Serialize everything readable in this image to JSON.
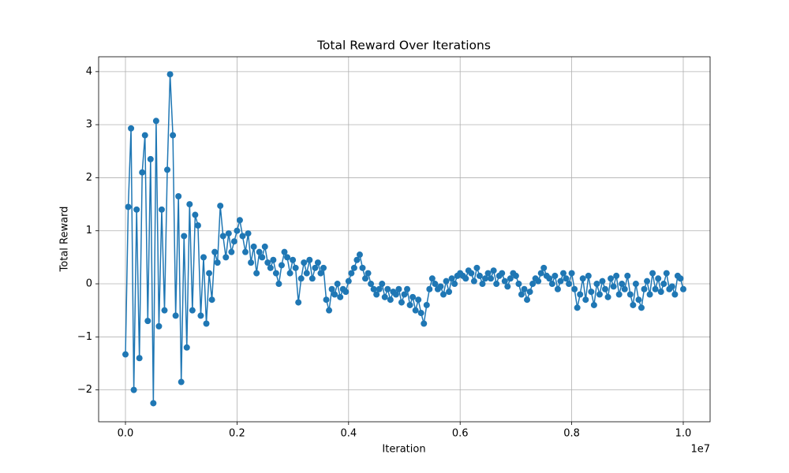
{
  "chart_data": {
    "type": "line",
    "title": "Total Reward Over Iterations",
    "x_label": "Iteration",
    "y_label": "Total Reward",
    "x_offset_label": "1e7",
    "color": "#1f77b4",
    "grid": true,
    "markers": true,
    "xlim": [
      -481000,
      10481000
    ],
    "ylim": [
      -2.6,
      4.28
    ],
    "xticks": [
      {
        "value": 0,
        "label": "0.0"
      },
      {
        "value": 2000000,
        "label": "0.2"
      },
      {
        "value": 4000000,
        "label": "0.4"
      },
      {
        "value": 6000000,
        "label": "0.6"
      },
      {
        "value": 8000000,
        "label": "0.8"
      },
      {
        "value": 10000000,
        "label": "1.0"
      }
    ],
    "yticks": [
      {
        "value": -2,
        "label": "−2"
      },
      {
        "value": -1,
        "label": "−1"
      },
      0,
      1,
      2,
      3,
      4
    ],
    "x": [
      0,
      50000,
      100000,
      150000,
      200000,
      250000,
      300000,
      350000,
      400000,
      450000,
      500000,
      550000,
      600000,
      650000,
      700000,
      750000,
      800000,
      850000,
      900000,
      950000,
      1000000,
      1050000,
      1100000,
      1150000,
      1200000,
      1250000,
      1300000,
      1350000,
      1400000,
      1450000,
      1500000,
      1550000,
      1600000,
      1650000,
      1700000,
      1750000,
      1800000,
      1850000,
      1900000,
      1950000,
      2000000,
      2050000,
      2100000,
      2150000,
      2200000,
      2250000,
      2300000,
      2350000,
      2400000,
      2450000,
      2500000,
      2550000,
      2600000,
      2650000,
      2700000,
      2750000,
      2800000,
      2850000,
      2900000,
      2950000,
      3000000,
      3050000,
      3100000,
      3150000,
      3200000,
      3250000,
      3300000,
      3350000,
      3400000,
      3450000,
      3500000,
      3550000,
      3600000,
      3650000,
      3700000,
      3750000,
      3800000,
      3850000,
      3900000,
      3950000,
      4000000,
      4050000,
      4100000,
      4150000,
      4200000,
      4250000,
      4300000,
      4350000,
      4400000,
      4450000,
      4500000,
      4550000,
      4600000,
      4650000,
      4700000,
      4750000,
      4800000,
      4850000,
      4900000,
      4950000,
      5000000,
      5050000,
      5100000,
      5150000,
      5200000,
      5250000,
      5300000,
      5350000,
      5400000,
      5450000,
      5500000,
      5550000,
      5600000,
      5650000,
      5700000,
      5750000,
      5800000,
      5850000,
      5900000,
      5950000,
      6000000,
      6050000,
      6100000,
      6150000,
      6200000,
      6250000,
      6300000,
      6350000,
      6400000,
      6450000,
      6500000,
      6550000,
      6600000,
      6650000,
      6700000,
      6750000,
      6800000,
      6850000,
      6900000,
      6950000,
      7000000,
      7050000,
      7100000,
      7150000,
      7200000,
      7250000,
      7300000,
      7350000,
      7400000,
      7450000,
      7500000,
      7550000,
      7600000,
      7650000,
      7700000,
      7750000,
      7800000,
      7850000,
      7900000,
      7950000,
      8000000,
      8050000,
      8100000,
      8150000,
      8200000,
      8250000,
      8300000,
      8350000,
      8400000,
      8450000,
      8500000,
      8550000,
      8600000,
      8650000,
      8700000,
      8750000,
      8800000,
      8850000,
      8900000,
      8950000,
      9000000,
      9050000,
      9100000,
      9150000,
      9200000,
      9250000,
      9300000,
      9350000,
      9400000,
      9450000,
      9500000,
      9550000,
      9600000,
      9650000,
      9700000,
      9750000,
      9800000,
      9850000,
      9900000,
      9950000,
      10000000
    ],
    "values": [
      -1.33,
      1.45,
      2.93,
      -2.0,
      1.4,
      -1.4,
      2.1,
      2.8,
      -0.7,
      2.35,
      -2.25,
      3.07,
      -0.8,
      1.4,
      -0.5,
      2.15,
      3.95,
      2.8,
      -0.6,
      1.65,
      -1.85,
      0.9,
      -1.2,
      1.5,
      -0.5,
      1.3,
      1.1,
      -0.6,
      0.5,
      -0.75,
      0.2,
      -0.3,
      0.6,
      0.4,
      1.47,
      0.9,
      0.5,
      0.95,
      0.6,
      0.8,
      1.0,
      1.2,
      0.9,
      0.6,
      0.95,
      0.4,
      0.7,
      0.2,
      0.6,
      0.5,
      0.7,
      0.4,
      0.3,
      0.45,
      0.2,
      0.0,
      0.35,
      0.6,
      0.5,
      0.2,
      0.45,
      0.3,
      -0.35,
      0.1,
      0.4,
      0.2,
      0.45,
      0.1,
      0.3,
      0.4,
      0.2,
      0.3,
      -0.3,
      -0.5,
      -0.1,
      -0.2,
      0.0,
      -0.25,
      -0.1,
      -0.15,
      0.05,
      0.2,
      0.3,
      0.45,
      0.55,
      0.3,
      0.1,
      0.2,
      0.0,
      -0.1,
      -0.2,
      -0.1,
      0.0,
      -0.25,
      -0.1,
      -0.3,
      -0.15,
      -0.2,
      -0.1,
      -0.35,
      -0.2,
      -0.1,
      -0.4,
      -0.25,
      -0.5,
      -0.3,
      -0.55,
      -0.75,
      -0.4,
      -0.1,
      0.1,
      0.0,
      -0.1,
      -0.05,
      -0.2,
      0.05,
      -0.15,
      0.1,
      0.0,
      0.15,
      0.2,
      0.15,
      0.1,
      0.25,
      0.2,
      0.05,
      0.3,
      0.15,
      0.0,
      0.1,
      0.2,
      0.1,
      0.25,
      0.0,
      0.15,
      0.2,
      0.05,
      -0.05,
      0.1,
      0.2,
      0.15,
      0.0,
      -0.2,
      -0.1,
      -0.3,
      -0.15,
      0.0,
      0.1,
      0.05,
      0.2,
      0.3,
      0.15,
      0.1,
      0.0,
      0.15,
      -0.1,
      0.05,
      0.2,
      0.1,
      0.0,
      0.2,
      -0.1,
      -0.45,
      -0.2,
      0.1,
      -0.3,
      0.15,
      -0.15,
      -0.4,
      0.0,
      -0.2,
      0.05,
      -0.1,
      -0.25,
      0.1,
      -0.05,
      0.15,
      -0.2,
      0.0,
      -0.1,
      0.15,
      -0.2,
      -0.4,
      0.0,
      -0.3,
      -0.45,
      -0.1,
      0.05,
      -0.2,
      0.2,
      -0.1,
      0.1,
      -0.15,
      0.0,
      0.2,
      -0.1,
      -0.05,
      -0.2,
      0.15,
      0.1,
      -0.1
    ]
  }
}
